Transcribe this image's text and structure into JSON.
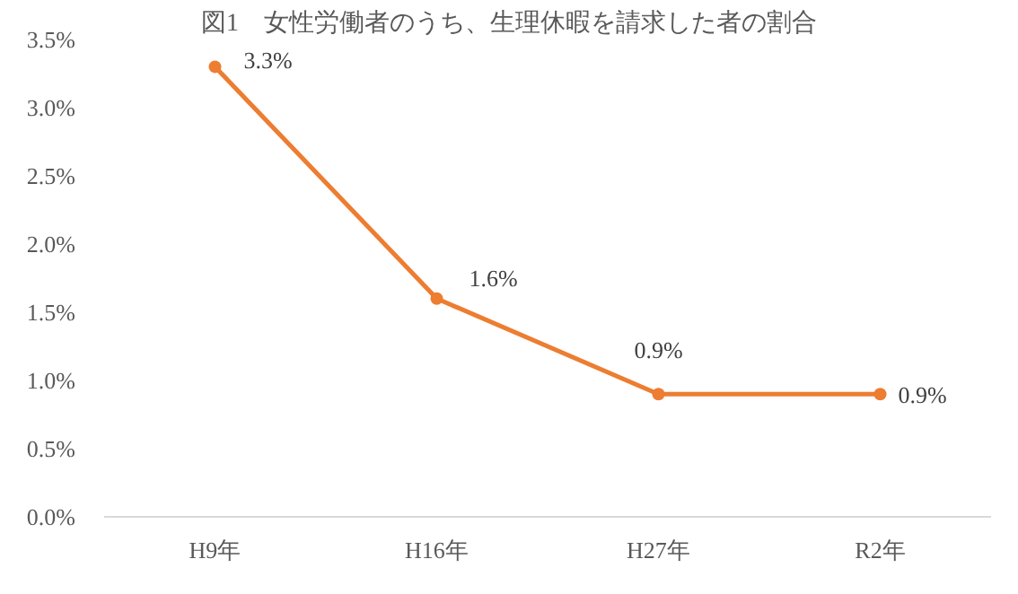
{
  "chart_data": {
    "type": "line",
    "title": "図1　女性労働者のうち、生理休暇を請求した者の割合",
    "categories": [
      "H9年",
      "H16年",
      "H27年",
      "R2年"
    ],
    "series": [
      {
        "color": "#ed7d31",
        "values": [
          3.3,
          1.6,
          0.9,
          0.9
        ],
        "value_labels": [
          "3.3%",
          "1.6%",
          "0.9%",
          "0.9%"
        ]
      }
    ],
    "ylim": [
      0,
      3.5
    ],
    "yticks": [
      {
        "value": 0,
        "label": "0.0%"
      },
      {
        "value": 0.5,
        "label": "0.5%"
      },
      {
        "value": 1,
        "label": "1.0%"
      },
      {
        "value": 1.5,
        "label": "1.5%"
      },
      {
        "value": 2,
        "label": "2.0%"
      },
      {
        "value": 2.5,
        "label": "2.5%"
      },
      {
        "value": 3,
        "label": "3.0%"
      },
      {
        "value": 3.5,
        "label": "3.5%"
      }
    ],
    "grid": false,
    "marker": "circle",
    "line_style": "solid"
  }
}
